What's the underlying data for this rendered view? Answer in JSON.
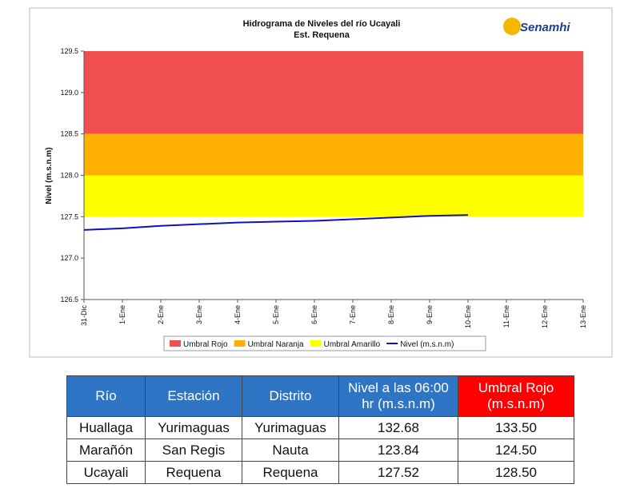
{
  "chart_data": {
    "type": "line",
    "title": "Hidrograma de Niveles del río Ucayali",
    "subtitle": "Est. Requena",
    "logo": "Senamhi",
    "ylabel": "Nivel (m.s.n.m)",
    "categories": [
      "31-Dic",
      "1-Ene",
      "2-Ene",
      "3-Ene",
      "4-Ene",
      "5-Ene",
      "6-Ene",
      "7-Ene",
      "8-Ene",
      "9-Ene",
      "10-Ene",
      "11-Ene",
      "12-Ene",
      "13-Ene"
    ],
    "bands": [
      {
        "name": "Umbral Rojo",
        "color": "#f04f4f",
        "from": 128.5,
        "to": 129.5
      },
      {
        "name": "Umbral Naranja",
        "color": "#ffb000",
        "from": 128.0,
        "to": 128.5
      },
      {
        "name": "Umbral Amarillo",
        "color": "#ffff00",
        "from": 127.5,
        "to": 128.0
      }
    ],
    "series": [
      {
        "name": "Nivel (m.s.n.m)",
        "color": "#1010c0",
        "values": [
          127.34,
          127.36,
          127.39,
          127.41,
          127.43,
          127.44,
          127.45,
          127.47,
          127.49,
          127.51,
          127.52,
          null,
          null,
          null
        ]
      }
    ],
    "ylim": [
      126.5,
      129.5
    ],
    "yticks": [
      {
        "value": 126.5,
        "label": "126.5"
      },
      {
        "value": 127,
        "label": "127.0"
      },
      {
        "value": 127.5,
        "label": "127.5"
      },
      {
        "value": 128,
        "label": "128.0"
      },
      {
        "value": 128.5,
        "label": "128.5"
      },
      {
        "value": 129,
        "label": "129.0"
      },
      {
        "value": 129.5,
        "label": "129.5"
      }
    ],
    "legend": "bottom"
  },
  "table": {
    "columns": [
      "Río",
      "Estación",
      "Distrito",
      "Nivel a las 06:00 hr  (m.s.n.m)",
      "Umbral Rojo (m.s.n.m)"
    ],
    "rows": [
      [
        "Huallaga",
        "Yurimaguas",
        "Yurimaguas",
        "132.68",
        "133.50"
      ],
      [
        "Marañón",
        "San Regis",
        "Nauta",
        "123.84",
        "124.50"
      ],
      [
        "Ucayali",
        "Requena",
        "Requena",
        "127.52",
        "128.50"
      ]
    ]
  }
}
